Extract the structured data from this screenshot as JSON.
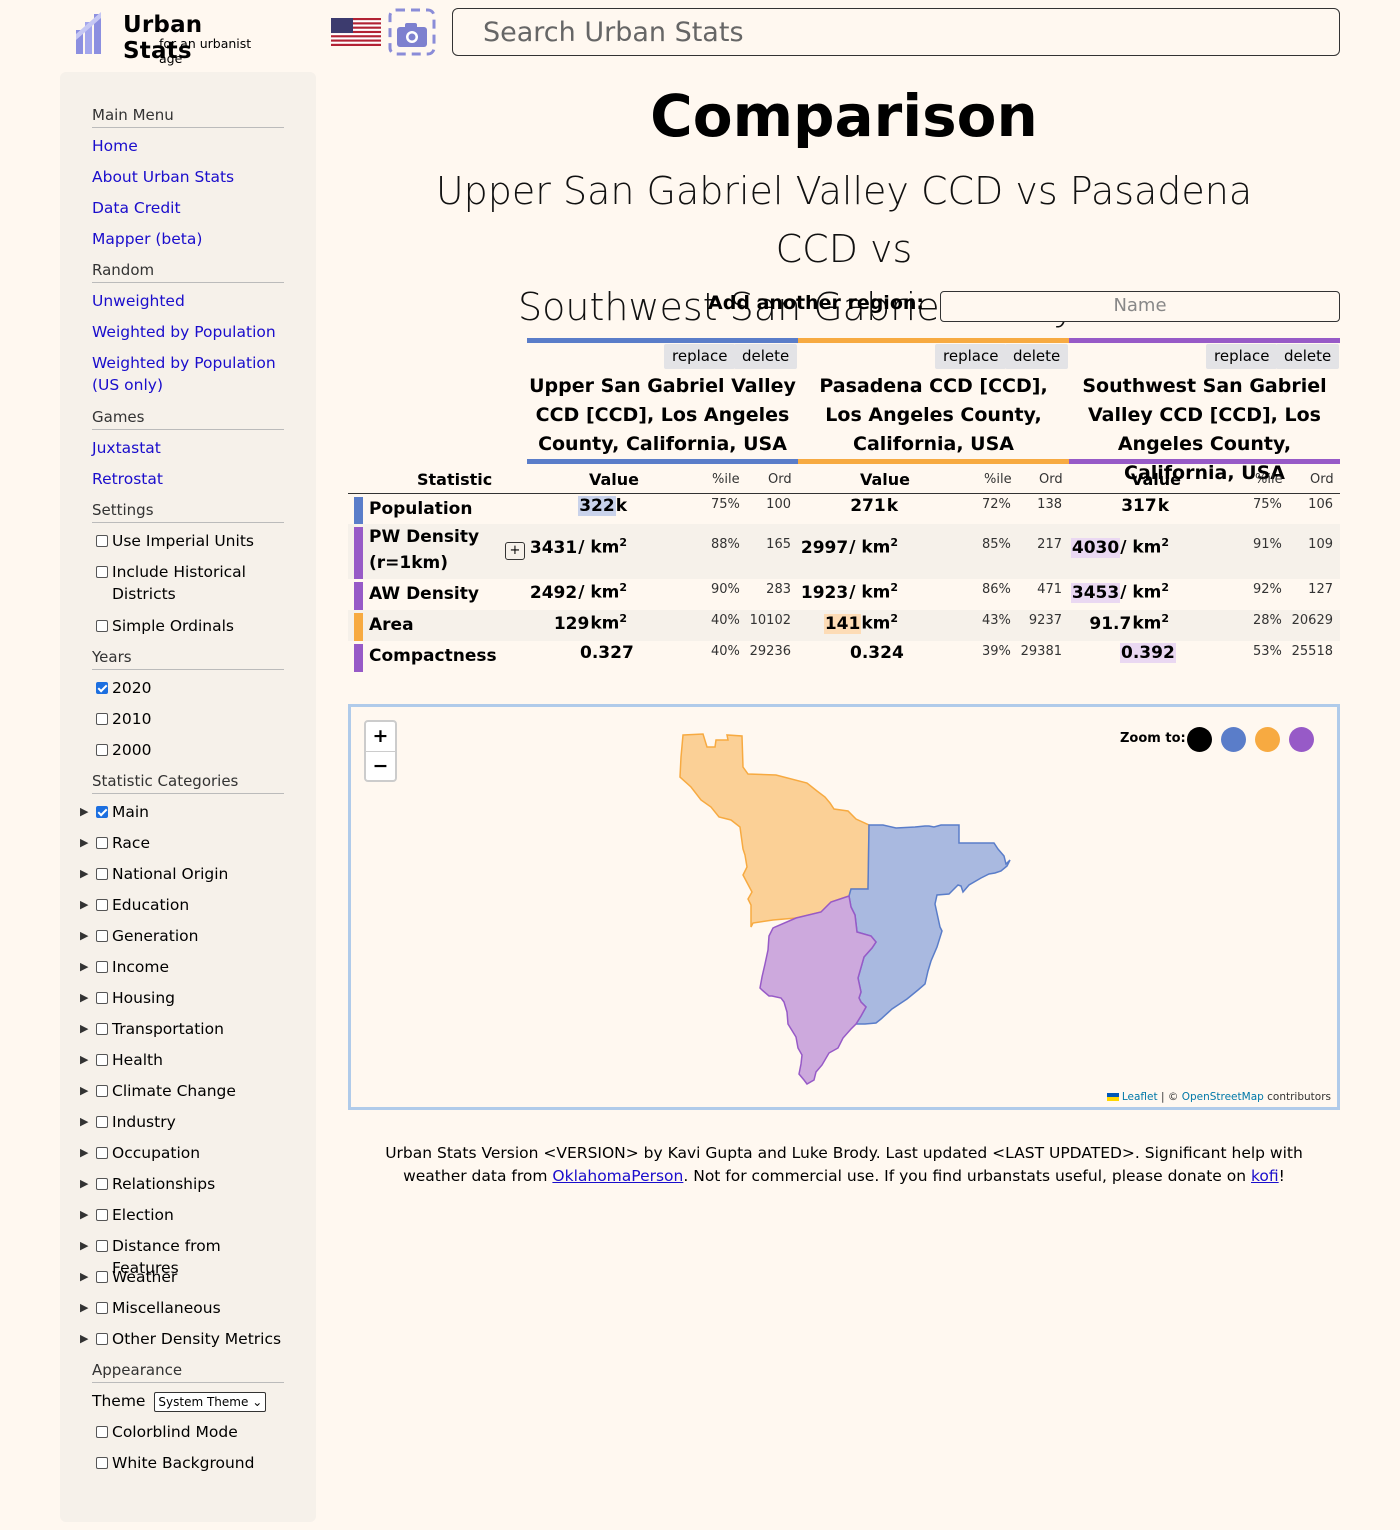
{
  "header": {
    "app_name": "Urban Stats",
    "tagline": "for an urbanist age",
    "search_placeholder": "Search Urban Stats"
  },
  "sidebar": {
    "main_menu": {
      "heading": "Main Menu",
      "items": [
        "Home",
        "About Urban Stats",
        "Data Credit",
        "Mapper (beta)"
      ]
    },
    "random": {
      "heading": "Random",
      "items": [
        "Unweighted",
        "Weighted by Population",
        "Weighted by Population (US only)"
      ]
    },
    "games": {
      "heading": "Games",
      "items": [
        "Juxtastat",
        "Retrostat"
      ]
    },
    "settings": {
      "heading": "Settings",
      "items": [
        {
          "label": "Use Imperial Units",
          "checked": false
        },
        {
          "label": "Include Historical Districts",
          "checked": false
        },
        {
          "label": "Simple Ordinals",
          "checked": false
        }
      ]
    },
    "years": {
      "heading": "Years",
      "items": [
        {
          "label": "2020",
          "checked": true
        },
        {
          "label": "2010",
          "checked": false
        },
        {
          "label": "2000",
          "checked": false
        }
      ]
    },
    "categories": {
      "heading": "Statistic Categories",
      "items": [
        {
          "label": "Main",
          "checked": true
        },
        {
          "label": "Race",
          "checked": false
        },
        {
          "label": "National Origin",
          "checked": false
        },
        {
          "label": "Education",
          "checked": false
        },
        {
          "label": "Generation",
          "checked": false
        },
        {
          "label": "Income",
          "checked": false
        },
        {
          "label": "Housing",
          "checked": false
        },
        {
          "label": "Transportation",
          "checked": false
        },
        {
          "label": "Health",
          "checked": false
        },
        {
          "label": "Climate Change",
          "checked": false
        },
        {
          "label": "Industry",
          "checked": false
        },
        {
          "label": "Occupation",
          "checked": false
        },
        {
          "label": "Relationships",
          "checked": false
        },
        {
          "label": "Election",
          "checked": false
        },
        {
          "label": "Distance from Features",
          "checked": false
        },
        {
          "label": "Weather",
          "checked": false
        },
        {
          "label": "Miscellaneous",
          "checked": false
        },
        {
          "label": "Other Density Metrics",
          "checked": false
        }
      ]
    },
    "appearance": {
      "heading": "Appearance",
      "theme_label": "Theme",
      "theme_value": "System Theme",
      "items": [
        {
          "label": "Colorblind Mode",
          "checked": false
        },
        {
          "label": "White Background",
          "checked": false
        }
      ]
    }
  },
  "main": {
    "title": "Comparison",
    "subtitle_line1": "Upper San Gabriel Valley CCD vs Pasadena CCD vs",
    "subtitle_line2": "Southwest San Gabriel Valley CCD",
    "add_region_label": "Add another region:",
    "add_region_placeholder": "Name",
    "replace_label": "replace",
    "delete_label": "delete",
    "columns": [
      {
        "name": "Upper San Gabriel Valley CCD [CCD], Los Angeles County, California, USA",
        "color": "#5a7dc9"
      },
      {
        "name": "Pasadena CCD [CCD], Los Angeles County, California, USA",
        "color": "#f7aa41"
      },
      {
        "name": "Southwest San Gabriel Valley CCD [CCD], Los Angeles County, California, USA",
        "color": "#975ac7"
      }
    ],
    "table_headers": {
      "statistic": "Statistic",
      "value": "Value",
      "pctile": "%ile",
      "ord": "Ord"
    },
    "rows": [
      {
        "label": "Population",
        "swatch": "#5a7dc9",
        "cells": [
          {
            "num": "322",
            "unit": "k",
            "pct": "75%",
            "ord": "100",
            "highlight": true
          },
          {
            "num": "271",
            "unit": "k",
            "pct": "72%",
            "ord": "138",
            "highlight": false
          },
          {
            "num": "317",
            "unit": "k",
            "pct": "75%",
            "ord": "106",
            "highlight": false
          }
        ]
      },
      {
        "label": "PW Density (r=1km)",
        "swatch": "#975ac7",
        "expand": "+",
        "cells": [
          {
            "num": "3431",
            "unit": "/ km",
            "pct": "88%",
            "ord": "165",
            "highlight": false
          },
          {
            "num": "2997",
            "unit": "/ km",
            "pct": "85%",
            "ord": "217",
            "highlight": false
          },
          {
            "num": "4030",
            "unit": "/ km",
            "pct": "91%",
            "ord": "109",
            "highlight": true
          }
        ]
      },
      {
        "label": "AW Density",
        "swatch": "#975ac7",
        "cells": [
          {
            "num": "2492",
            "unit": "/ km",
            "pct": "90%",
            "ord": "283",
            "highlight": false
          },
          {
            "num": "1923",
            "unit": "/ km",
            "pct": "86%",
            "ord": "471",
            "highlight": false
          },
          {
            "num": "3453",
            "unit": "/ km",
            "pct": "92%",
            "ord": "127",
            "highlight": true
          }
        ]
      },
      {
        "label": "Area",
        "swatch": "#f7aa41",
        "cells": [
          {
            "num": "129",
            "unit": "km",
            "pct": "40%",
            "ord": "10102",
            "highlight": false
          },
          {
            "num": "141",
            "unit": "km",
            "pct": "43%",
            "ord": "9237",
            "highlight": true
          },
          {
            "num": "91.7",
            "unit": "km",
            "pct": "28%",
            "ord": "20629",
            "highlight": false
          }
        ]
      },
      {
        "label": "Compactness",
        "swatch": "#975ac7",
        "cells": [
          {
            "num": "0.327",
            "unit": "",
            "pct": "40%",
            "ord": "29236",
            "highlight": false
          },
          {
            "num": "0.324",
            "unit": "",
            "pct": "39%",
            "ord": "29381",
            "highlight": false
          },
          {
            "num": "0.392",
            "unit": "",
            "pct": "53%",
            "ord": "25518",
            "highlight": true
          }
        ]
      }
    ],
    "superscript": "2",
    "map": {
      "zoom_in": "+",
      "zoom_out": "−",
      "zoom_to_label": "Zoom to:",
      "zoom_colors": [
        "#000000",
        "#5a7dc9",
        "#f7aa41",
        "#975ac7"
      ],
      "attribution_leaflet": "Leaflet",
      "attribution_sep": "| ©",
      "attribution_osm": "OpenStreetMap",
      "attribution_tail": "contributors"
    },
    "footer": {
      "text1": "Urban Stats Version <VERSION> by Kavi Gupta and Luke Brody. Last updated <LAST UPDATED>. Significant help with weather data from",
      "link1": "OklahomaPerson",
      "text2": ". Not for commercial use. If you find urbanstats useful, please donate on",
      "link2": "kofi",
      "text3": "!"
    }
  }
}
